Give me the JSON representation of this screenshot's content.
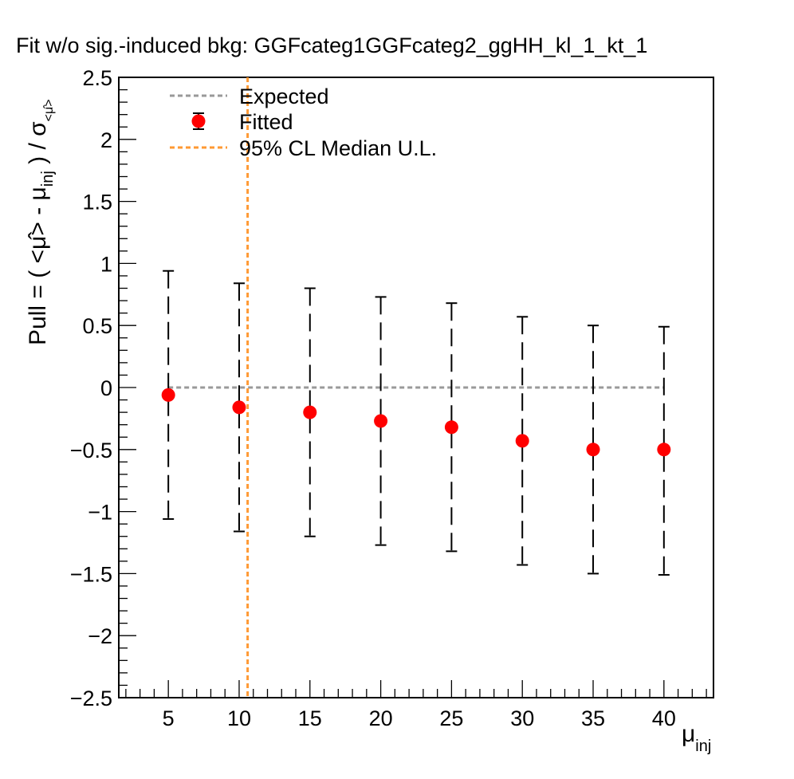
{
  "chart_data": {
    "type": "scatter",
    "title": "Fit w/o sig.-induced bkg: GGFcateg1GGFcateg2_ggHH_kl_1_kt_1",
    "xlabel": "μ",
    "xlabel_sub": "inj",
    "ylabel_main": "Pull = ( <μ̂> - μ",
    "ylabel_sub": "inj",
    "ylabel_mid": " ) / σ",
    "ylabel_sigma_sub": "<μ̂>",
    "xlim": [
      1.5,
      43.5
    ],
    "ylim": [
      -2.5,
      2.5
    ],
    "x_ticks": [
      {
        "value": 5,
        "label": "5"
      },
      {
        "value": 10,
        "label": "10"
      },
      {
        "value": 15,
        "label": "15"
      },
      {
        "value": 20,
        "label": "20"
      },
      {
        "value": 25,
        "label": "25"
      },
      {
        "value": 30,
        "label": "30"
      },
      {
        "value": 35,
        "label": "35"
      },
      {
        "value": 40,
        "label": "40"
      }
    ],
    "y_ticks": [
      {
        "value": -2.5,
        "label": "−2.5"
      },
      {
        "value": -2,
        "label": "−2"
      },
      {
        "value": -1.5,
        "label": "−1.5"
      },
      {
        "value": -1,
        "label": "−1"
      },
      {
        "value": -0.5,
        "label": "−0.5"
      },
      {
        "value": 0,
        "label": "0"
      },
      {
        "value": 0.5,
        "label": "0.5"
      },
      {
        "value": 1,
        "label": "1"
      },
      {
        "value": 1.5,
        "label": "1.5"
      },
      {
        "value": 2,
        "label": "2"
      },
      {
        "value": 2.5,
        "label": "2.5"
      }
    ],
    "legend": {
      "placement": "top-left",
      "entries": [
        {
          "label": "Expected",
          "style": "dashed-line",
          "color": "#999999"
        },
        {
          "label": "Fitted",
          "style": "marker-errorbar",
          "color": "#ff0000"
        },
        {
          "label": "95% CL Median U.L.",
          "style": "dashed-line",
          "color": "#ff9933"
        }
      ]
    },
    "series": [
      {
        "name": "Fitted",
        "color": "#ff0000",
        "x": [
          5,
          10,
          15,
          20,
          25,
          30,
          35,
          40
        ],
        "y": [
          -0.06,
          -0.16,
          -0.2,
          -0.27,
          -0.32,
          -0.43,
          -0.5,
          -0.5
        ],
        "y_err_low": [
          -1.06,
          -1.16,
          -1.2,
          -1.27,
          -1.32,
          -1.43,
          -1.5,
          -1.51
        ],
        "y_err_high": [
          0.94,
          0.84,
          0.8,
          0.73,
          0.68,
          0.57,
          0.5,
          0.49
        ]
      }
    ],
    "expected_line": {
      "name": "Expected",
      "y": 0,
      "x_range": [
        5,
        40
      ],
      "color": "#999999"
    },
    "median_ul": {
      "name": "95% CL Median U.L.",
      "x": 10.6,
      "color": "#ff9933"
    }
  }
}
